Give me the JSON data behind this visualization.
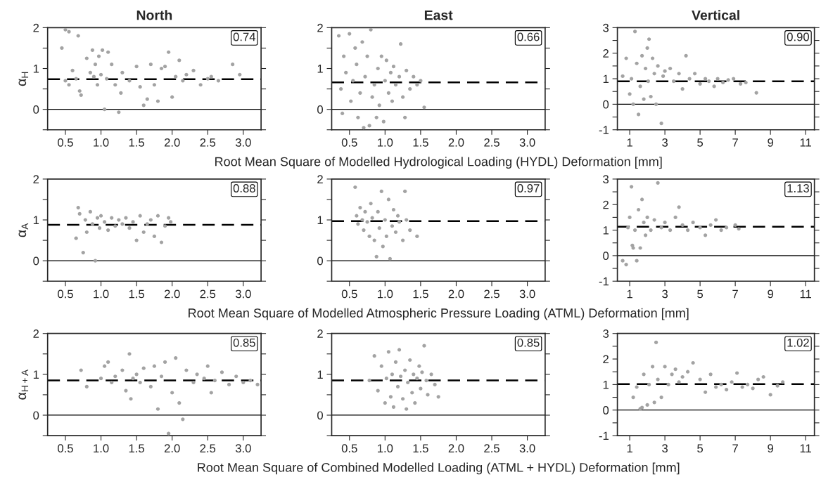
{
  "chart_data": [
    {
      "type": "scatter",
      "title": "North",
      "ylabel": "α$_{H}$",
      "marker": "circle",
      "color": "#a3a3a3",
      "xlim": [
        0.25,
        3.25
      ],
      "xticks": [
        0.5,
        {
          "value": 1,
          "label": "1.0"
        },
        1.5,
        {
          "value": 2,
          "label": "2.0"
        },
        2.5,
        {
          "value": 3,
          "label": "3.0"
        }
      ],
      "ylim": [
        -0.5,
        2
      ],
      "yticks": [
        {
          "value": -0.5,
          "label": null
        },
        0,
        {
          "value": 0.5,
          "label": null
        },
        1,
        {
          "value": 1.5,
          "label": null
        },
        2
      ],
      "x": [
        0.45,
        0.5,
        0.55,
        0.68,
        0.5,
        0.55,
        0.6,
        0.65,
        0.7,
        0.72,
        0.8,
        0.85,
        0.88,
        0.9,
        0.92,
        0.95,
        0.97,
        1.0,
        1.02,
        1.05,
        1.08,
        1.1,
        1.15,
        1.2,
        1.25,
        1.28,
        1.3,
        1.4,
        1.5,
        1.55,
        1.6,
        1.65,
        1.7,
        1.75,
        1.8,
        1.85,
        1.9,
        1.95,
        2.0,
        2.05,
        2.1,
        2.15,
        2.2,
        2.3,
        2.4,
        2.5,
        2.55,
        2.65,
        2.85,
        2.95
      ],
      "values": [
        1.5,
        1.95,
        1.9,
        1.8,
        0.7,
        0.6,
        0.95,
        0.75,
        0.45,
        0.35,
        1.25,
        0.9,
        1.45,
        0.8,
        1.1,
        0.6,
        1.3,
        0.85,
        1.45,
        0.0,
        0.75,
        1.4,
        1.1,
        0.6,
        -0.07,
        0.4,
        0.9,
        0.7,
        1.05,
        0.55,
        0.1,
        0.25,
        1.1,
        0.6,
        0.2,
        1.0,
        1.05,
        1.4,
        0.3,
        0.8,
        1.2,
        0.7,
        0.85,
        0.95,
        0.6,
        0.75,
        0.8,
        0.7,
        1.1,
        0.85
      ],
      "ref_lines": [
        {
          "axis": "y",
          "value": 0,
          "line_style": "solid",
          "color": "#000000"
        },
        {
          "axis": "y",
          "value": 0.74,
          "label": "0.74",
          "line_style": "dashed",
          "color": "#000000"
        }
      ]
    },
    {
      "type": "scatter",
      "title": "East",
      "xlabel": "Root Mean Square of Modelled Hydrological Loading (HYDL) Deformation [mm]",
      "marker": "circle",
      "color": "#a3a3a3",
      "xlim": [
        0.25,
        3.25
      ],
      "xticks": [
        0.5,
        {
          "value": 1,
          "label": "1.0"
        },
        1.5,
        {
          "value": 2,
          "label": "2.0"
        },
        2.5,
        {
          "value": 3,
          "label": "3.0"
        }
      ],
      "ylim": [
        -0.5,
        2
      ],
      "yticks": [
        {
          "value": -0.5,
          "label": null
        },
        0,
        {
          "value": 0.5,
          "label": null
        },
        1,
        {
          "value": 1.5,
          "label": null
        },
        2
      ],
      "x": [
        0.35,
        0.38,
        0.4,
        0.42,
        0.45,
        0.5,
        0.52,
        0.55,
        0.58,
        0.6,
        0.62,
        0.65,
        0.68,
        0.7,
        0.72,
        0.75,
        0.78,
        0.8,
        0.82,
        0.85,
        0.88,
        0.9,
        0.92,
        0.95,
        0.98,
        1.0,
        1.02,
        1.05,
        1.08,
        1.1,
        1.12,
        1.15,
        1.2,
        1.22,
        1.25,
        1.28,
        1.3,
        1.35,
        1.4,
        1.45,
        1.5,
        1.55
      ],
      "values": [
        1.8,
        0.5,
        -0.1,
        1.3,
        0.9,
        1.85,
        0.2,
        0.7,
        1.5,
        1.1,
        -0.2,
        0.4,
        1.65,
        -0.45,
        0.8,
        1.3,
        -0.4,
        1.95,
        0.3,
        0.6,
        -0.2,
        1.0,
        0.1,
        1.3,
        -0.3,
        0.7,
        1.2,
        0.4,
        0.9,
        0.2,
        1.05,
        0.6,
        0.8,
        1.6,
        0.3,
        -0.2,
        0.95,
        0.5,
        0.8,
        0.6,
        0.7,
        0.05
      ],
      "ref_lines": [
        {
          "axis": "y",
          "value": 0,
          "line_style": "solid",
          "color": "#000000"
        },
        {
          "axis": "y",
          "value": 0.66,
          "label": "0.66",
          "line_style": "dashed",
          "color": "#000000"
        }
      ]
    },
    {
      "type": "scatter",
      "title": "Vertical",
      "marker": "circle",
      "color": "#a3a3a3",
      "xlim": [
        0.3,
        11.5
      ],
      "xticks": [
        1,
        3,
        5,
        7,
        9,
        11
      ],
      "ylim": [
        -1,
        3
      ],
      "yticks": [
        -1,
        {
          "value": -0.5,
          "label": null
        },
        0,
        {
          "value": 0.5,
          "label": null
        },
        1,
        {
          "value": 1.5,
          "label": null
        },
        2,
        {
          "value": 2.5,
          "label": null
        },
        3
      ],
      "x": [
        0.6,
        0.8,
        1.0,
        1.1,
        1.2,
        1.3,
        1.4,
        1.5,
        1.6,
        1.7,
        1.8,
        1.9,
        2.0,
        2.05,
        2.1,
        2.2,
        2.3,
        2.4,
        2.5,
        2.6,
        2.8,
        2.9,
        3.0,
        3.3,
        3.5,
        3.8,
        4.0,
        4.2,
        4.4,
        4.7,
        5.0,
        5.3,
        5.5,
        5.8,
        6.0,
        6.3,
        6.6,
        6.9,
        7.3,
        7.6,
        8.2
      ],
      "values": [
        1.1,
        1.8,
        0.4,
        1.0,
        0.0,
        2.85,
        1.6,
        -0.4,
        0.7,
        1.9,
        0.2,
        1.4,
        2.2,
        0.9,
        2.55,
        0.3,
        1.8,
        1.2,
        0.0,
        1.5,
        -0.75,
        1.1,
        1.3,
        1.4,
        0.9,
        1.2,
        0.6,
        1.9,
        1.0,
        1.2,
        0.8,
        1.0,
        0.9,
        0.7,
        1.0,
        0.85,
        0.95,
        1.0,
        0.8,
        0.85,
        0.45
      ],
      "ref_lines": [
        {
          "axis": "y",
          "value": 0,
          "line_style": "solid",
          "color": "#000000"
        },
        {
          "axis": "y",
          "value": 0.9,
          "label": "0.90",
          "line_style": "dashed",
          "color": "#000000"
        }
      ]
    },
    {
      "type": "scatter",
      "ylabel": "α$_{A}$",
      "marker": "circle",
      "color": "#a3a3a3",
      "xlim": [
        0.25,
        3.25
      ],
      "xticks": [
        0.5,
        {
          "value": 1,
          "label": "1.0"
        },
        1.5,
        {
          "value": 2,
          "label": "2.0"
        },
        2.5,
        {
          "value": 3,
          "label": "3.0"
        }
      ],
      "ylim": [
        -0.5,
        2
      ],
      "yticks": [
        {
          "value": -0.5,
          "label": null
        },
        0,
        {
          "value": 0.5,
          "label": null
        },
        1,
        {
          "value": 1.5,
          "label": null
        },
        2
      ],
      "x": [
        0.65,
        0.68,
        0.7,
        0.75,
        0.78,
        0.8,
        0.85,
        0.88,
        0.92,
        0.95,
        0.98,
        1.0,
        1.05,
        1.1,
        1.15,
        1.2,
        1.25,
        1.3,
        1.35,
        1.4,
        1.45,
        1.5,
        1.55,
        1.6,
        1.65,
        1.7,
        1.75,
        1.8,
        1.85,
        1.9,
        1.95,
        1.98
      ],
      "values": [
        0.55,
        1.3,
        1.15,
        0.2,
        1.0,
        0.7,
        1.2,
        0.9,
        0.0,
        1.05,
        0.8,
        1.1,
        0.95,
        0.75,
        1.05,
        0.85,
        1.0,
        0.9,
        1.05,
        0.8,
        0.95,
        0.5,
        1.1,
        0.7,
        0.9,
        1.0,
        0.6,
        1.1,
        0.45,
        0.85,
        1.05,
        0.95
      ],
      "ref_lines": [
        {
          "axis": "y",
          "value": 0,
          "line_style": "solid",
          "color": "#000000"
        },
        {
          "axis": "y",
          "value": 0.88,
          "label": "0.88",
          "line_style": "dashed",
          "color": "#000000"
        }
      ]
    },
    {
      "type": "scatter",
      "xlabel": "Root Mean Square of Modelled Atmospheric Pressure Loading (ATML) Deformation [mm]",
      "marker": "circle",
      "color": "#a3a3a3",
      "xlim": [
        0.25,
        3.25
      ],
      "xticks": [
        0.5,
        {
          "value": 1,
          "label": "1.0"
        },
        1.5,
        {
          "value": 2,
          "label": "2.0"
        },
        2.5,
        {
          "value": 3,
          "label": "3.0"
        }
      ],
      "ylim": [
        -0.5,
        2
      ],
      "yticks": [
        {
          "value": -0.5,
          "label": null
        },
        0,
        {
          "value": 0.5,
          "label": null
        },
        1,
        {
          "value": 1.5,
          "label": null
        },
        2
      ],
      "x": [
        0.58,
        0.6,
        0.62,
        0.65,
        0.68,
        0.7,
        0.72,
        0.75,
        0.78,
        0.8,
        0.82,
        0.85,
        0.88,
        0.9,
        0.92,
        0.95,
        0.97,
        1.0,
        1.02,
        1.05,
        1.07,
        1.1,
        1.12,
        1.15,
        1.18,
        1.2,
        1.25,
        1.28,
        1.3,
        1.35,
        1.45
      ],
      "values": [
        1.8,
        1.1,
        0.9,
        1.3,
        1.0,
        0.75,
        1.2,
        0.95,
        0.6,
        1.4,
        1.05,
        0.5,
        0.1,
        1.2,
        0.8,
        1.7,
        0.35,
        1.0,
        0.6,
        1.5,
        0.05,
        0.85,
        1.25,
        0.7,
        1.1,
        0.95,
        0.5,
        1.7,
        1.0,
        0.75,
        0.6
      ],
      "ref_lines": [
        {
          "axis": "y",
          "value": 0,
          "line_style": "solid",
          "color": "#000000"
        },
        {
          "axis": "y",
          "value": 0.97,
          "label": "0.97",
          "line_style": "dashed",
          "color": "#000000"
        }
      ]
    },
    {
      "type": "scatter",
      "marker": "circle",
      "color": "#a3a3a3",
      "xlim": [
        0.3,
        11.5
      ],
      "xticks": [
        1,
        3,
        5,
        7,
        9,
        11
      ],
      "ylim": [
        -1,
        3
      ],
      "yticks": [
        -1,
        {
          "value": -0.5,
          "label": null
        },
        0,
        {
          "value": 0.5,
          "label": null
        },
        1,
        {
          "value": 1.5,
          "label": null
        },
        2,
        {
          "value": 2.5,
          "label": null
        },
        3
      ],
      "x": [
        0.6,
        0.8,
        0.9,
        1.0,
        1.1,
        1.15,
        1.2,
        1.3,
        1.4,
        1.5,
        1.6,
        1.7,
        1.8,
        1.9,
        2.0,
        2.2,
        2.4,
        2.6,
        2.8,
        3.0,
        3.3,
        3.6,
        3.8,
        4.0,
        4.3,
        4.6,
        5.0,
        5.3,
        5.6,
        5.9,
        6.2,
        6.5,
        7.0,
        7.2
      ],
      "values": [
        -0.2,
        -0.35,
        1.1,
        1.5,
        2.7,
        0.4,
        0.3,
        1.0,
        -0.2,
        1.8,
        0.3,
        2.2,
        1.3,
        0.8,
        1.5,
        1.0,
        1.4,
        2.85,
        1.1,
        1.3,
        1.0,
        1.5,
        1.9,
        1.2,
        1.0,
        1.3,
        1.1,
        0.8,
        1.2,
        1.4,
        1.0,
        1.1,
        1.2,
        1.05
      ],
      "ref_lines": [
        {
          "axis": "y",
          "value": 0,
          "line_style": "solid",
          "color": "#000000"
        },
        {
          "axis": "y",
          "value": 1.13,
          "label": "1.13",
          "line_style": "dashed",
          "color": "#000000"
        }
      ]
    },
    {
      "type": "scatter",
      "ylabel": "α$_{H+A}$",
      "marker": "circle",
      "color": "#a3a3a3",
      "xlim": [
        0.25,
        3.25
      ],
      "xticks": [
        0.5,
        {
          "value": 1,
          "label": "1.0"
        },
        1.5,
        {
          "value": 2,
          "label": "2.0"
        },
        2.5,
        {
          "value": 3,
          "label": "3.0"
        }
      ],
      "ylim": [
        -0.5,
        2
      ],
      "yticks": [
        {
          "value": -0.5,
          "label": null
        },
        0,
        {
          "value": 0.5,
          "label": null
        },
        1,
        {
          "value": 1.5,
          "label": null
        },
        2
      ],
      "x": [
        0.72,
        0.8,
        1.0,
        1.05,
        1.1,
        1.15,
        1.2,
        1.3,
        1.35,
        1.4,
        1.42,
        1.45,
        1.5,
        1.55,
        1.6,
        1.7,
        1.75,
        1.8,
        1.85,
        1.9,
        1.95,
        2.0,
        2.05,
        2.1,
        2.15,
        2.2,
        2.3,
        2.35,
        2.45,
        2.5,
        2.55,
        2.6,
        2.7,
        2.8,
        2.9,
        3.0,
        3.1,
        3.2
      ],
      "values": [
        1.1,
        0.7,
        0.9,
        1.2,
        1.3,
        0.8,
        0.95,
        1.1,
        0.6,
        1.5,
        0.4,
        0.9,
        1.0,
        0.8,
        1.15,
        0.7,
        1.2,
        0.15,
        0.95,
        1.3,
        -0.45,
        0.55,
        1.4,
        0.3,
        -0.1,
        1.1,
        0.8,
        1.0,
        0.9,
        1.2,
        0.55,
        0.85,
        1.05,
        0.75,
        0.95,
        0.8,
        0.85,
        0.75
      ],
      "ref_lines": [
        {
          "axis": "y",
          "value": 0,
          "line_style": "solid",
          "color": "#000000"
        },
        {
          "axis": "y",
          "value": 0.85,
          "label": "0.85",
          "line_style": "dashed",
          "color": "#000000"
        }
      ]
    },
    {
      "type": "scatter",
      "xlabel": "Root Mean Square of Combined Modelled Loading (ATML + HYDL) Deformation [mm]",
      "marker": "circle",
      "color": "#a3a3a3",
      "xlim": [
        0.25,
        3.25
      ],
      "xticks": [
        0.5,
        {
          "value": 1,
          "label": "1.0"
        },
        1.5,
        {
          "value": 2,
          "label": "2.0"
        },
        2.5,
        {
          "value": 3,
          "label": "3.0"
        }
      ],
      "ylim": [
        -0.5,
        2
      ],
      "yticks": [
        {
          "value": -0.5,
          "label": null
        },
        0,
        {
          "value": 0.5,
          "label": null
        },
        1,
        {
          "value": 1.5,
          "label": null
        },
        2
      ],
      "x": [
        0.78,
        0.85,
        0.9,
        0.95,
        1.0,
        1.02,
        1.05,
        1.08,
        1.1,
        1.12,
        1.15,
        1.18,
        1.2,
        1.22,
        1.25,
        1.28,
        1.3,
        1.32,
        1.35,
        1.38,
        1.4,
        1.42,
        1.45,
        1.48,
        1.5,
        1.52,
        1.55,
        1.58,
        1.6,
        1.65,
        1.7,
        1.75
      ],
      "values": [
        0.85,
        1.45,
        0.6,
        1.2,
        0.3,
        0.9,
        1.55,
        0.45,
        1.0,
        0.2,
        1.3,
        0.7,
        1.6,
        0.95,
        0.4,
        1.1,
        0.15,
        0.8,
        1.35,
        0.55,
        1.0,
        0.3,
        0.9,
        1.2,
        0.65,
        1.05,
        1.7,
        0.85,
        0.5,
        1.0,
        0.75,
        0.45
      ],
      "ref_lines": [
        {
          "axis": "y",
          "value": 0,
          "line_style": "solid",
          "color": "#000000"
        },
        {
          "axis": "y",
          "value": 0.85,
          "label": "0.85",
          "line_style": "dashed",
          "color": "#000000"
        }
      ]
    },
    {
      "type": "scatter",
      "marker": "circle",
      "color": "#a3a3a3",
      "xlim": [
        0.3,
        11.5
      ],
      "xticks": [
        1,
        3,
        5,
        7,
        9,
        11
      ],
      "ylim": [
        -1,
        3
      ],
      "yticks": [
        -1,
        {
          "value": -0.5,
          "label": null
        },
        0,
        {
          "value": 0.5,
          "label": null
        },
        1,
        {
          "value": 1.5,
          "label": null
        },
        2,
        {
          "value": 2.5,
          "label": null
        },
        3
      ],
      "x": [
        1.2,
        1.4,
        1.6,
        1.7,
        1.8,
        2.0,
        2.1,
        2.3,
        2.4,
        2.5,
        2.6,
        2.8,
        3.0,
        3.2,
        3.4,
        3.6,
        3.8,
        4.0,
        4.3,
        4.6,
        5.0,
        5.3,
        5.6,
        5.9,
        6.2,
        6.5,
        6.8,
        7.1,
        7.4,
        7.7,
        8.0,
        8.3,
        8.6,
        9.0,
        9.4,
        9.7
      ],
      "values": [
        0.5,
        0.9,
        0.05,
        0.1,
        1.4,
        0.2,
        1.0,
        1.7,
        0.3,
        2.65,
        1.2,
        0.5,
        1.7,
        1.0,
        1.4,
        1.6,
        1.1,
        1.3,
        1.5,
        1.85,
        1.2,
        0.7,
        1.4,
        0.9,
        1.0,
        0.8,
        1.1,
        1.45,
        0.9,
        1.0,
        0.85,
        1.2,
        1.3,
        0.6,
        0.95,
        1.1
      ],
      "ref_lines": [
        {
          "axis": "y",
          "value": 0,
          "line_style": "solid",
          "color": "#000000"
        },
        {
          "axis": "y",
          "value": 1.02,
          "label": "1.02",
          "line_style": "dashed",
          "color": "#000000"
        }
      ]
    }
  ]
}
